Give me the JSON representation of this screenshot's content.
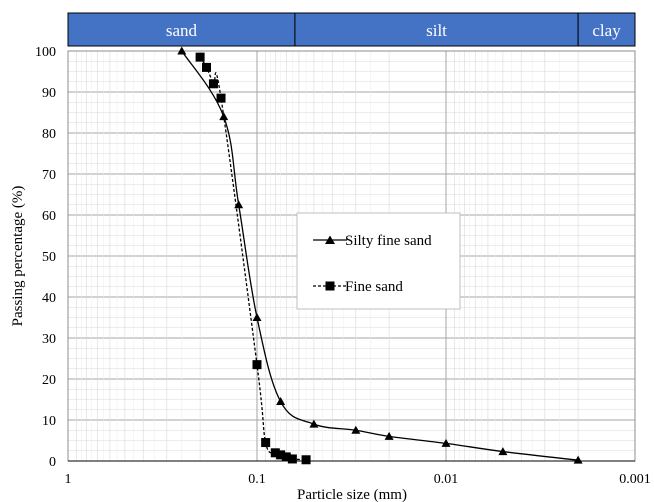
{
  "chart_data": {
    "type": "line",
    "xlabel": "Particle size (mm)",
    "ylabel": "Passing percentage (%)",
    "x_scale": "log",
    "x_reversed": true,
    "xlim": [
      1,
      0.001
    ],
    "ylim": [
      0,
      100
    ],
    "x_ticks": [
      1,
      0.1,
      0.01,
      0.001
    ],
    "x_tick_labels": [
      "1",
      "0.1",
      "0.01",
      "0.001"
    ],
    "y_ticks": [
      0,
      10,
      20,
      30,
      40,
      50,
      60,
      70,
      80,
      90,
      100
    ],
    "grid": true,
    "legend_position": "center-right",
    "soil_bands": [
      {
        "label": "sand",
        "from": 1,
        "to": 0.063
      },
      {
        "label": "silt",
        "from": 0.063,
        "to": 0.002
      },
      {
        "label": "clay",
        "from": 0.002,
        "to": 0.001
      }
    ],
    "band_color": "#4472c4",
    "series": [
      {
        "name": "Silty fine sand",
        "marker": "triangle",
        "line_style": "solid",
        "x": [
          0.25,
          0.15,
          0.125,
          0.1,
          0.075,
          0.05,
          0.03,
          0.02,
          0.01,
          0.005,
          0.002
        ],
        "y": [
          100,
          84,
          62.5,
          35,
          14.5,
          9,
          7.5,
          6,
          4.3,
          2.3,
          0.2
        ]
      },
      {
        "name": "Fine sand",
        "marker": "square",
        "line_style": "dashed",
        "x": [
          0.2,
          0.185,
          0.17,
          0.155,
          0.1,
          0.09,
          0.08,
          0.075,
          0.07,
          0.065,
          0.055
        ],
        "y": [
          98.5,
          96,
          92,
          88.5,
          23.5,
          4.5,
          2,
          1.5,
          1,
          0.5,
          0.3
        ]
      }
    ],
    "line_color": "#000000",
    "grid_color": "#d9d9d9",
    "major_grid_color": "#a6a6a6"
  }
}
